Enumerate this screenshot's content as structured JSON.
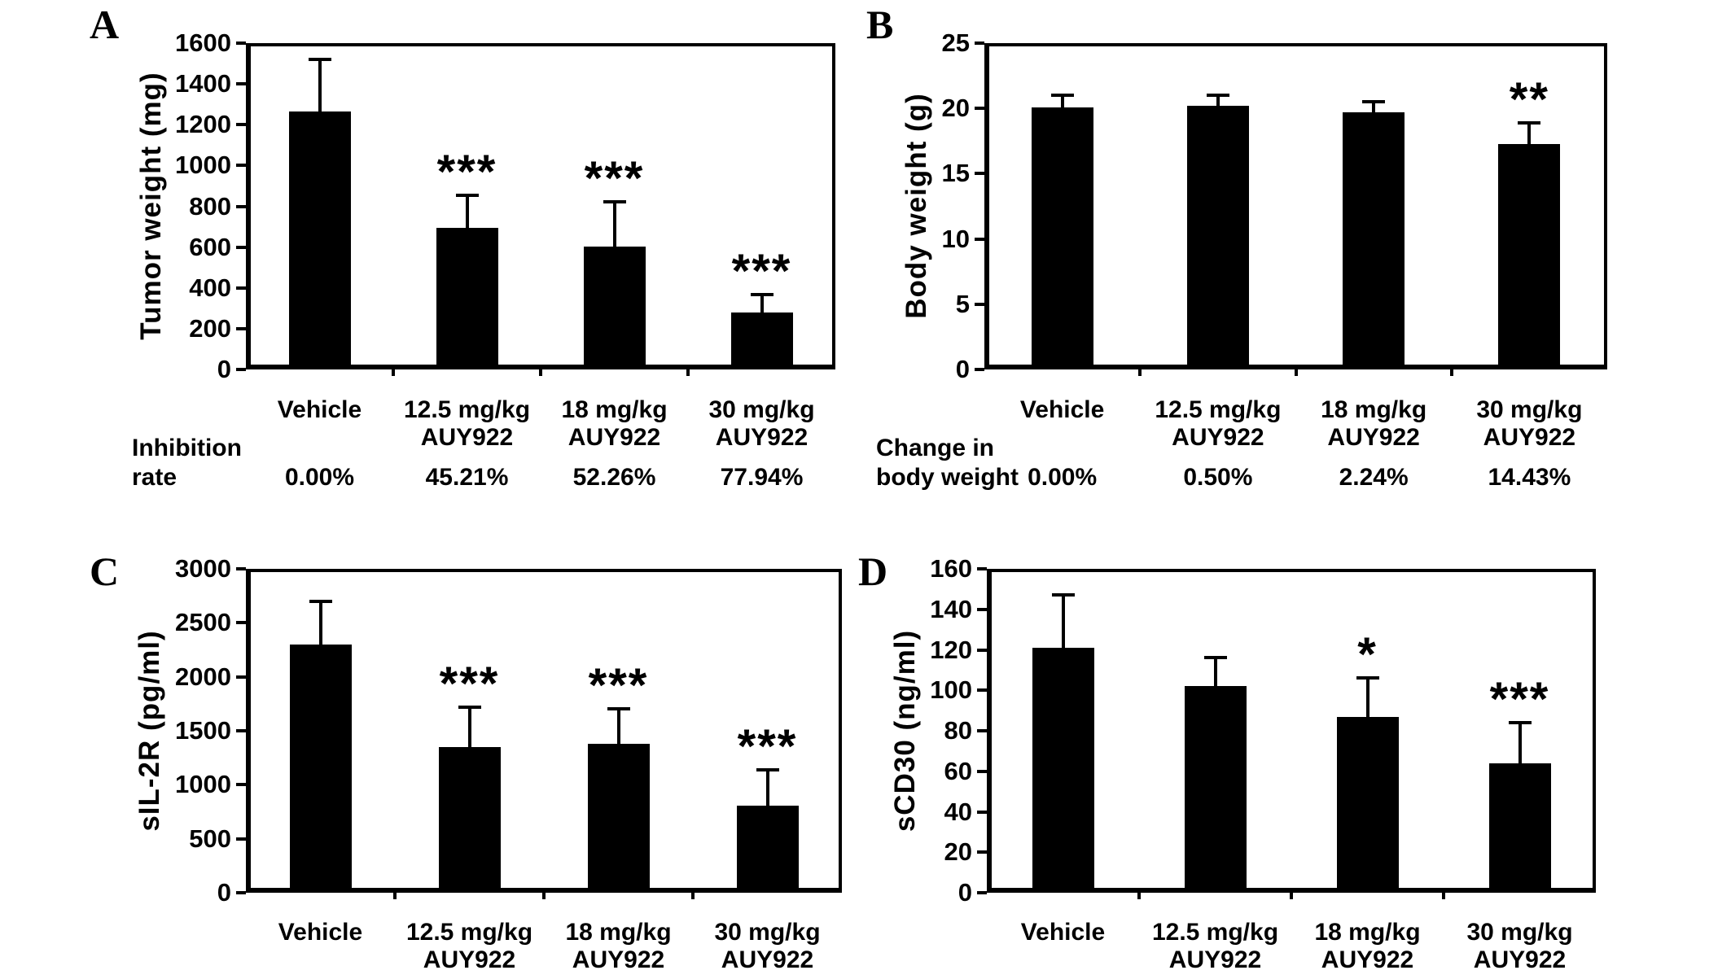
{
  "figure": {
    "background_color": "#ffffff",
    "bar_color": "#000000",
    "axis_color": "#000000"
  },
  "chart_data": [
    {
      "id": "A",
      "panel_label": "A",
      "type": "bar",
      "title": "",
      "xlabel": "",
      "ylabel": "Tumor weight (mg)",
      "ylim": [
        0,
        1600
      ],
      "ytick_step": 200,
      "yticks": [
        0,
        200,
        400,
        600,
        800,
        1000,
        1200,
        1400,
        1600
      ],
      "grid": false,
      "error_bars": "upper",
      "categories": [
        [
          "Vehicle"
        ],
        [
          "12.5 mg/kg",
          "AUY922"
        ],
        [
          "18 mg/kg",
          "AUY922"
        ],
        [
          "30 mg/kg",
          "AUY922"
        ]
      ],
      "values": [
        1265,
        693,
        604,
        279
      ],
      "error_plus": [
        255,
        162,
        216,
        87
      ],
      "significance": [
        "",
        "***",
        "***",
        "***"
      ],
      "annotation_row": {
        "label_lines": [
          "Inhibition",
          "rate"
        ],
        "values": [
          "0.00%",
          "45.21%",
          "52.26%",
          "77.94%"
        ]
      }
    },
    {
      "id": "B",
      "panel_label": "B",
      "type": "bar",
      "title": "",
      "xlabel": "",
      "ylabel": "Body weight (g)",
      "ylim": [
        0,
        25
      ],
      "ytick_step": 5,
      "yticks": [
        0,
        5,
        10,
        15,
        20,
        25
      ],
      "grid": false,
      "error_bars": "upper",
      "categories": [
        [
          "Vehicle"
        ],
        [
          "12.5 mg/kg",
          "AUY922"
        ],
        [
          "18 mg/kg",
          "AUY922"
        ],
        [
          "30 mg/kg",
          "AUY922"
        ]
      ],
      "values": [
        20.1,
        20.2,
        19.7,
        17.3
      ],
      "error_plus": [
        0.9,
        0.8,
        0.8,
        1.6
      ],
      "significance": [
        "",
        "",
        "",
        "**"
      ],
      "annotation_row": {
        "label_lines": [
          "Change in",
          "body weight"
        ],
        "values": [
          "0.00%",
          "0.50%",
          "2.24%",
          "14.43%"
        ]
      }
    },
    {
      "id": "C",
      "panel_label": "C",
      "type": "bar",
      "title": "",
      "xlabel": "",
      "ylabel": "sIL-2R (pg/ml)",
      "ylim": [
        0,
        3000
      ],
      "ytick_step": 500,
      "yticks": [
        0,
        500,
        1000,
        1500,
        2000,
        2500,
        3000
      ],
      "grid": false,
      "error_bars": "upper",
      "categories": [
        [
          "Vehicle"
        ],
        [
          "12.5 mg/kg",
          "AUY922"
        ],
        [
          "18 mg/kg",
          "AUY922"
        ],
        [
          "30 mg/kg",
          "AUY922"
        ]
      ],
      "values": [
        2300,
        1350,
        1380,
        810
      ],
      "error_plus": [
        400,
        370,
        320,
        330
      ],
      "significance": [
        "",
        "***",
        "***",
        "***"
      ]
    },
    {
      "id": "D",
      "panel_label": "D",
      "type": "bar",
      "title": "",
      "xlabel": "",
      "ylabel": "sCD30 (ng/ml)",
      "ylim": [
        0,
        160
      ],
      "ytick_step": 20,
      "yticks": [
        0,
        20,
        40,
        60,
        80,
        100,
        120,
        140,
        160
      ],
      "grid": false,
      "error_bars": "upper",
      "categories": [
        [
          "Vehicle"
        ],
        [
          "12.5 mg/kg",
          "AUY922"
        ],
        [
          "18 mg/kg",
          "AUY922"
        ],
        [
          "30 mg/kg",
          "AUY922"
        ]
      ],
      "values": [
        121,
        102,
        87,
        64
      ],
      "error_plus": [
        26,
        14,
        19,
        20
      ],
      "significance": [
        "",
        "",
        "*",
        "***"
      ]
    }
  ]
}
